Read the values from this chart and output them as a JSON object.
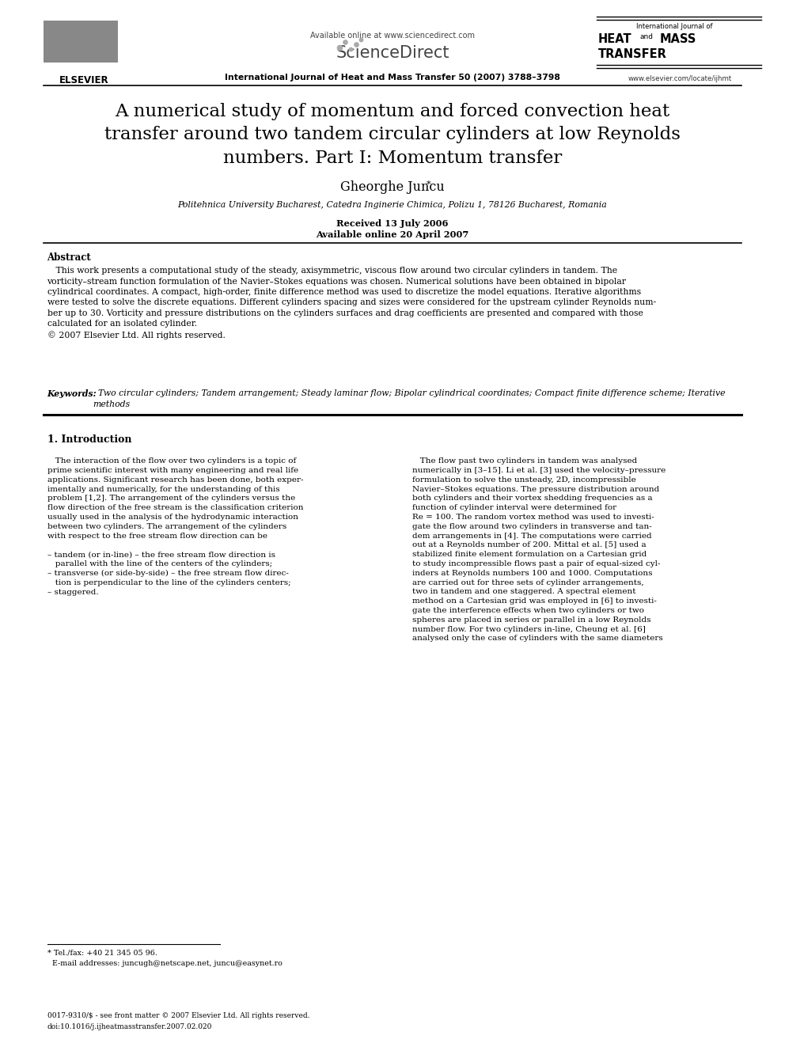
{
  "page_width": 9.92,
  "page_height": 13.23,
  "bg_color": "#ffffff",
  "available_online": "Available online at www.sciencedirect.com",
  "journal_line": "International Journal of Heat and Mass Transfer 50 (2007) 3788–3798",
  "website": "www.elsevier.com/locate/ijhmt",
  "sciencedirect_text": "ScienceDirect",
  "journal_name_line1": "International Journal of",
  "journal_name_bold1": "HEAT",
  "journal_name_and": "and",
  "journal_name_bold2": "MASS",
  "journal_name_bold3": "TRANSFER",
  "elsevier_label": "ELSEVIER",
  "title": "A numerical study of momentum and forced convection heat\ntransfer around two tandem circular cylinders at low Reynolds\nnumbers. Part I: Momentum transfer",
  "author": "Gheorghe Juncu",
  "affiliation": "Politehnica University Bucharest, Catedra Inginerie Chimica, Polizu 1, 78126 Bucharest, Romania",
  "received": "Received 13 July 2006",
  "available": "Available online 20 April 2007",
  "abstract_title": "Abstract",
  "abstract_text": "   This work presents a computational study of the steady, axisymmetric, viscous flow around two circular cylinders in tandem. The\nvorticity–stream function formulation of the Navier–Stokes equations was chosen. Numerical solutions have been obtained in bipolar\ncylindrical coordinates. A compact, high-order, finite difference method was used to discretize the model equations. Iterative algorithms\nwere tested to solve the discrete equations. Different cylinders spacing and sizes were considered for the upstream cylinder Reynolds num-\nber up to 30. Vorticity and pressure distributions on the cylinders surfaces and drag coefficients are presented and compared with those\ncalculated for an isolated cylinder.\n© 2007 Elsevier Ltd. All rights reserved.",
  "keywords_label": "Keywords:",
  "keywords_text": "  Two circular cylinders; Tandem arrangement; Steady laminar flow; Bipolar cylindrical coordinates; Compact finite difference scheme; Iterative\nmethods",
  "section1_title": "1. Introduction",
  "intro_left": "   The interaction of the flow over two cylinders is a topic of\nprime scientific interest with many engineering and real life\napplications. Significant research has been done, both exper-\nimentally and numerically, for the understanding of this\nproblem [1,2]. The arrangement of the cylinders versus the\nflow direction of the free stream is the classification criterion\nusually used in the analysis of the hydrodynamic interaction\nbetween two cylinders. The arrangement of the cylinders\nwith respect to the free stream flow direction can be\n\n– tandem (or in-line) – the free stream flow direction is\n   parallel with the line of the centers of the cylinders;\n– transverse (or side-by-side) – the free stream flow direc-\n   tion is perpendicular to the line of the cylinders centers;\n– staggered.",
  "intro_right": "   The flow past two cylinders in tandem was analysed\nnumerically in [3–15]. Li et al. [3] used the velocity–pressure\nformulation to solve the unsteady, 2D, incompressible\nNavier–Stokes equations. The pressure distribution around\nboth cylinders and their vortex shedding frequencies as a\nfunction of cylinder interval were determined for\nRe = 100. The random vortex method was used to investi-\ngate the flow around two cylinders in transverse and tan-\ndem arrangements in [4]. The computations were carried\nout at a Reynolds number of 200. Mittal et al. [5] used a\nstabilized finite element formulation on a Cartesian grid\nto study incompressible flows past a pair of equal-sized cyl-\ninders at Reynolds numbers 100 and 1000. Computations\nare carried out for three sets of cylinder arrangements,\ntwo in tandem and one staggered. A spectral element\nmethod on a Cartesian grid was employed in [6] to investi-\ngate the interference effects when two cylinders or two\nspheres are placed in series or parallel in a low Reynolds\nnumber flow. For two cylinders in-line, Cheung et al. [6]\nanalysed only the case of cylinders with the same diameters",
  "footnote_line1": "* Tel./fax: +40 21 345 05 96.",
  "footnote_line2": "  E-mail addresses: juncugh@netscape.net, juncu@easynet.ro",
  "footer_line1": "0017-9310/$ - see front matter © 2007 Elsevier Ltd. All rights reserved.",
  "footer_line2": "doi:10.1016/j.ijheatmasstransfer.2007.02.020"
}
